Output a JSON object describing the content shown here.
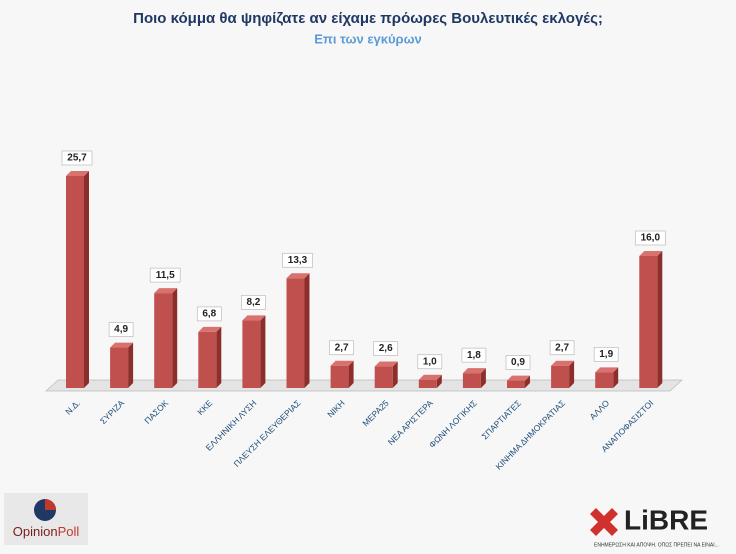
{
  "chart_data": {
    "type": "bar",
    "title": "Ποιο κόμμα θα ψηφίζατε αν είχαμε πρόωρες Βουλευτικές εκλογές;",
    "subtitle": "Επι των εγκύρων",
    "categories": [
      "Ν.Δ.",
      "ΣΥΡΙΖΑ",
      "ΠΑΣΟΚ",
      "ΚΚΕ",
      "ΕΛΛΗΝΙΚΗ ΛΥΣΗ",
      "ΠΛΕΥΣΗ ΕΛΕΥΘΕΡΙΑΣ",
      "ΝΙΚΗ",
      "ΜΕΡΑ25",
      "ΝΕΑ ΑΡΙΣΤΕΡΑ",
      "ΦΩΝΗ ΛΟΓΙΚΗΣ",
      "ΣΠΑΡΤΙΑΤΕΣ",
      "ΚΙΝΗΜΑ ΔΗΜΟΚΡΑΤΙΑΣ",
      "ΑΛΛΟ",
      "ΑΝΑΠΟΦΑΣΙΣΤΟΙ"
    ],
    "values": [
      25.7,
      4.9,
      11.5,
      6.8,
      8.2,
      13.3,
      2.7,
      2.6,
      1.0,
      1.8,
      0.9,
      2.7,
      1.9,
      16.0
    ],
    "value_labels": [
      "25,7",
      "4,9",
      "11,5",
      "6,8",
      "8,2",
      "13,3",
      "2,7",
      "2,6",
      "1,0",
      "1,8",
      "0,9",
      "2,7",
      "1,9",
      "16,0"
    ],
    "color": "#c0504d"
  },
  "logos": {
    "opinion": "Opinion",
    "poll": "Poll",
    "libre": "LiBRE",
    "tagline": "ΕΝΗΜΕΡΩΣΗ ΚΑΙ ΑΠΟΨΗ. ΟΠΩΣ ΠΡΕΠΕΙ ΝΑ ΕΙΝΑΙ..."
  }
}
